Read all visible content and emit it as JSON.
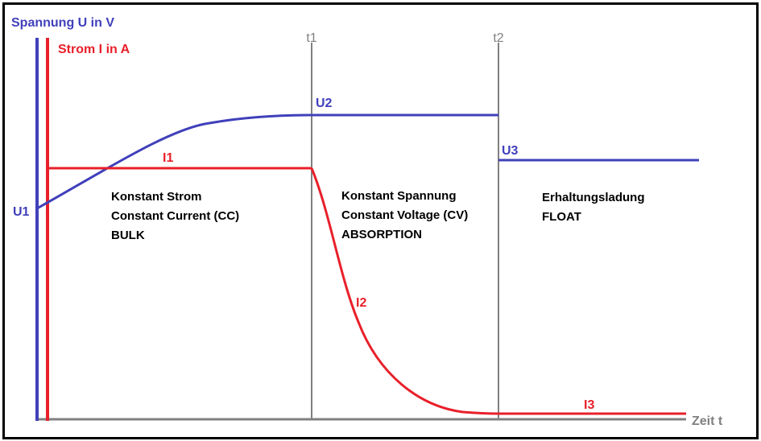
{
  "title": "",
  "axes": {
    "voltage_label": "Spannung U in V",
    "current_label": "Strom I in A",
    "time_label": "Zeit t"
  },
  "markers": {
    "t1": "t1",
    "t2": "t2"
  },
  "labels": {
    "U1": "U1",
    "U2": "U2",
    "U3": "U3",
    "I1": "I1",
    "I2": "I2",
    "I3": "I3"
  },
  "phases": {
    "bulk": {
      "line1": "Konstant Strom",
      "line2": "Constant Current (CC)",
      "line3": "BULK"
    },
    "absorption": {
      "line1": "Konstant Spannung",
      "line2": "Constant Voltage (CV)",
      "line3": "ABSORPTION"
    },
    "float": {
      "line1": "Erhaltungsladung",
      "line2": "FLOAT"
    }
  },
  "colors": {
    "voltage": "#4040bb",
    "current": "#e8202a",
    "axis": "#808080",
    "text": "#000000",
    "frame": "#000000"
  }
}
